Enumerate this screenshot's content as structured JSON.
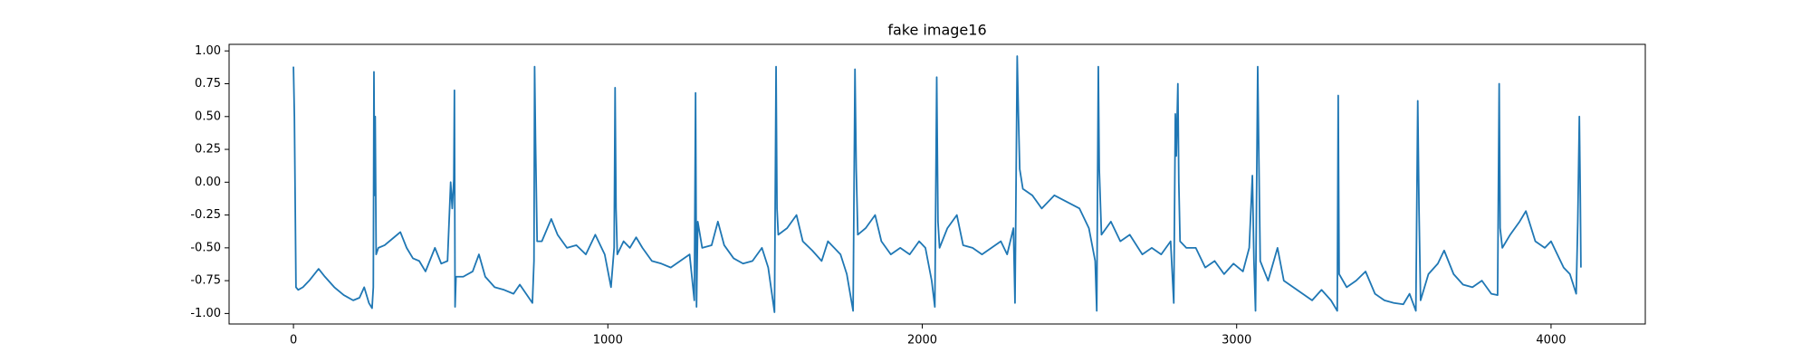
{
  "chart_data": {
    "type": "line",
    "title": "fake image16",
    "x": [
      0,
      3,
      8,
      15,
      30,
      50,
      80,
      100,
      130,
      160,
      190,
      210,
      225,
      240,
      250,
      254,
      256,
      258,
      260,
      263,
      270,
      290,
      320,
      340,
      360,
      380,
      400,
      420,
      450,
      470,
      490,
      500,
      505,
      510,
      512,
      514,
      517,
      540,
      570,
      590,
      610,
      640,
      670,
      700,
      720,
      740,
      760,
      765,
      767,
      770,
      775,
      790,
      820,
      840,
      870,
      900,
      930,
      960,
      990,
      1010,
      1020,
      1023,
      1026,
      1030,
      1050,
      1070,
      1090,
      1110,
      1140,
      1170,
      1200,
      1230,
      1260,
      1275,
      1279,
      1282,
      1286,
      1300,
      1330,
      1350,
      1370,
      1400,
      1430,
      1460,
      1490,
      1510,
      1530,
      1535,
      1538,
      1542,
      1570,
      1600,
      1620,
      1650,
      1680,
      1700,
      1720,
      1740,
      1760,
      1780,
      1786,
      1790,
      1795,
      1820,
      1850,
      1870,
      1900,
      1930,
      1960,
      1990,
      2010,
      2030,
      2040,
      2046,
      2050,
      2055,
      2080,
      2110,
      2130,
      2160,
      2190,
      2220,
      2250,
      2270,
      2290,
      2295,
      2302,
      2306,
      2310,
      2320,
      2350,
      2380,
      2420,
      2460,
      2500,
      2530,
      2550,
      2555,
      2560,
      2563,
      2570,
      2600,
      2630,
      2660,
      2700,
      2730,
      2760,
      2790,
      2800,
      2805,
      2808,
      2813,
      2816,
      2820,
      2840,
      2870,
      2900,
      2930,
      2960,
      2990,
      3020,
      3040,
      3050,
      3055,
      3060,
      3067,
      3070,
      3075,
      3100,
      3130,
      3150,
      3180,
      3210,
      3240,
      3270,
      3300,
      3320,
      3323,
      3326,
      3350,
      3380,
      3410,
      3440,
      3470,
      3500,
      3530,
      3550,
      3570,
      3576,
      3580,
      3585,
      3610,
      3640,
      3660,
      3690,
      3720,
      3750,
      3780,
      3810,
      3830,
      3835,
      3838,
      3845,
      3870,
      3900,
      3920,
      3950,
      3980,
      4000,
      4020,
      4040,
      4060,
      4080,
      4085,
      4090,
      4093,
      4095
    ],
    "series": [
      {
        "color": "#1f77b4",
        "values": [
          0.88,
          0.5,
          -0.8,
          -0.82,
          -0.8,
          -0.75,
          -0.66,
          -0.72,
          -0.8,
          -0.86,
          -0.9,
          -0.88,
          -0.8,
          -0.92,
          -0.96,
          -0.8,
          0.84,
          -0.1,
          0.5,
          -0.55,
          -0.5,
          -0.48,
          -0.42,
          -0.38,
          -0.5,
          -0.58,
          -0.6,
          -0.68,
          -0.5,
          -0.62,
          -0.6,
          0.0,
          -0.2,
          0.02,
          0.7,
          -0.95,
          -0.72,
          -0.72,
          -0.68,
          -0.55,
          -0.72,
          -0.8,
          -0.82,
          -0.85,
          -0.78,
          -0.85,
          -0.92,
          -0.6,
          0.88,
          0.3,
          -0.45,
          -0.45,
          -0.28,
          -0.4,
          -0.5,
          -0.48,
          -0.55,
          -0.4,
          -0.55,
          -0.8,
          -0.5,
          0.72,
          -0.2,
          -0.55,
          -0.45,
          -0.5,
          -0.42,
          -0.5,
          -0.6,
          -0.62,
          -0.65,
          -0.6,
          -0.55,
          -0.9,
          0.68,
          -0.95,
          -0.3,
          -0.5,
          -0.48,
          -0.3,
          -0.48,
          -0.58,
          -0.62,
          -0.6,
          -0.5,
          -0.65,
          -0.99,
          0.88,
          -0.2,
          -0.4,
          -0.35,
          -0.25,
          -0.45,
          -0.52,
          -0.6,
          -0.45,
          -0.5,
          -0.55,
          -0.7,
          -0.98,
          0.86,
          0.1,
          -0.4,
          -0.35,
          -0.25,
          -0.45,
          -0.55,
          -0.5,
          -0.55,
          -0.45,
          -0.5,
          -0.75,
          -0.95,
          0.8,
          -0.3,
          -0.5,
          -0.35,
          -0.25,
          -0.48,
          -0.5,
          -0.55,
          -0.5,
          -0.45,
          -0.55,
          -0.35,
          -0.92,
          0.96,
          0.5,
          0.1,
          -0.05,
          -0.1,
          -0.2,
          -0.1,
          -0.15,
          -0.2,
          -0.35,
          -0.6,
          -0.98,
          0.88,
          0.1,
          -0.4,
          -0.3,
          -0.45,
          -0.4,
          -0.55,
          -0.5,
          -0.55,
          -0.45,
          -0.92,
          0.52,
          0.2,
          0.75,
          0.0,
          -0.45,
          -0.5,
          -0.5,
          -0.65,
          -0.6,
          -0.7,
          -0.62,
          -0.68,
          -0.5,
          0.05,
          -0.6,
          -0.98,
          0.88,
          0.3,
          -0.6,
          -0.75,
          -0.5,
          -0.75,
          -0.8,
          -0.85,
          -0.9,
          -0.82,
          -0.9,
          -0.98,
          0.66,
          -0.7,
          -0.8,
          -0.75,
          -0.68,
          -0.85,
          -0.9,
          -0.92,
          -0.93,
          -0.85,
          -0.98,
          0.62,
          -0.2,
          -0.9,
          -0.7,
          -0.62,
          -0.52,
          -0.7,
          -0.78,
          -0.8,
          -0.75,
          -0.85,
          -0.86,
          0.75,
          -0.35,
          -0.5,
          -0.4,
          -0.3,
          -0.22,
          -0.45,
          -0.5,
          -0.45,
          -0.55,
          -0.65,
          -0.7,
          -0.85,
          -0.3,
          0.5,
          -0.1,
          -0.65
        ]
      }
    ],
    "xlim": [
      -204.75,
      4299.75
    ],
    "ylim": [
      -1.08,
      1.05
    ],
    "xticks": [
      0,
      1000,
      2000,
      3000,
      4000
    ],
    "yticks": [
      {
        "value": 1,
        "label": "1.00"
      },
      0.75,
      {
        "value": 0.5,
        "label": "0.50"
      },
      0.25,
      {
        "value": 0,
        "label": "0.00"
      },
      {
        "value": -0.25,
        "label": "-0.25"
      },
      {
        "value": -0.5,
        "label": "-0.50"
      },
      {
        "value": -0.75,
        "label": "-0.75"
      },
      {
        "value": -1,
        "label": "-1.00"
      }
    ],
    "grid": false
  }
}
